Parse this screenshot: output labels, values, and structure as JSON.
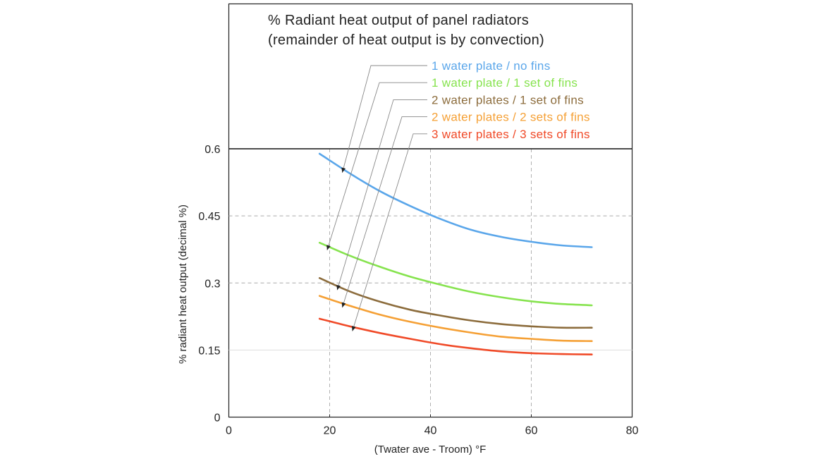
{
  "chart_data": {
    "type": "line",
    "title_lines": [
      "% Radiant heat output of panel radiators",
      "(remainder of heat output is by convection)"
    ],
    "xlabel": "(Twater ave - Troom) °F",
    "ylabel": "% radiant heat output (decimal %)",
    "xlim": [
      0,
      80
    ],
    "ylim": [
      0,
      0.6
    ],
    "xticks": [
      0,
      20,
      40,
      60,
      80
    ],
    "yticks": [
      0,
      0.15,
      0.3,
      0.45,
      0.6
    ],
    "xtick_labels": [
      "0",
      "20",
      "40",
      "60",
      "80"
    ],
    "ytick_labels": [
      "0",
      "0.15",
      "0.3",
      "0.45",
      "0.6"
    ],
    "grid": "dashed",
    "legend_location": "top-right, above plot area, with arrows pointing to curves",
    "x": [
      18,
      24,
      30,
      36,
      42,
      48,
      54,
      60,
      66,
      72
    ],
    "series": [
      {
        "name": "1 water plate / no fins",
        "color": "#5aa6ea",
        "values": [
          0.589,
          0.545,
          0.505,
          0.472,
          0.443,
          0.419,
          0.403,
          0.392,
          0.384,
          0.38
        ],
        "arrow_target_x": 22.5
      },
      {
        "name": "1 water plate / 1 set of fins",
        "color": "#86e34e",
        "values": [
          0.39,
          0.361,
          0.336,
          0.314,
          0.296,
          0.28,
          0.268,
          0.259,
          0.253,
          0.25
        ],
        "arrow_target_x": 19.5
      },
      {
        "name": "2 water plates / 1 set of fins",
        "color": "#8c6c3c",
        "values": [
          0.311,
          0.281,
          0.258,
          0.24,
          0.227,
          0.216,
          0.208,
          0.203,
          0.2,
          0.2
        ],
        "arrow_target_x": 21.5
      },
      {
        "name": "2 water plates / 2 sets of fins",
        "color": "#f5a035",
        "values": [
          0.271,
          0.249,
          0.229,
          0.213,
          0.2,
          0.189,
          0.18,
          0.175,
          0.171,
          0.17
        ],
        "arrow_target_x": 22.5
      },
      {
        "name": "3 water plates / 3 sets of fins",
        "color": "#f04a28",
        "values": [
          0.22,
          0.203,
          0.188,
          0.175,
          0.163,
          0.154,
          0.147,
          0.143,
          0.141,
          0.14
        ],
        "arrow_target_x": 24.5
      }
    ]
  }
}
